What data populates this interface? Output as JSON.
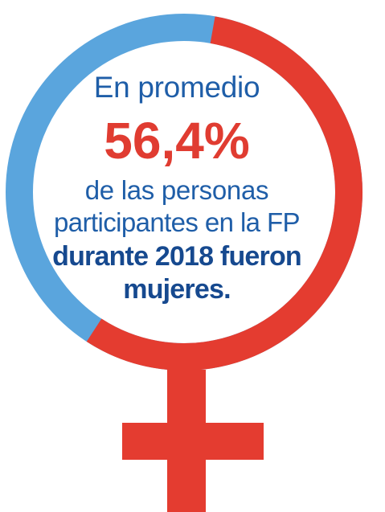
{
  "colors": {
    "female_share": "#e43c30",
    "male_share": "#5aa5dd",
    "text_blue": "#1f5ea8",
    "text_bold_blue": "#16498f",
    "text_red": "#e03c31"
  },
  "symbol": {
    "icon": "venus-female-symbol-icon",
    "female_share_percent": 56.4
  },
  "text": {
    "intro": "En promedio",
    "percent": "56,4%",
    "line1": "de las personas",
    "line2": "participantes en la FP",
    "bold_line1": "durante 2018 fueron",
    "bold_line2": "mujeres."
  }
}
